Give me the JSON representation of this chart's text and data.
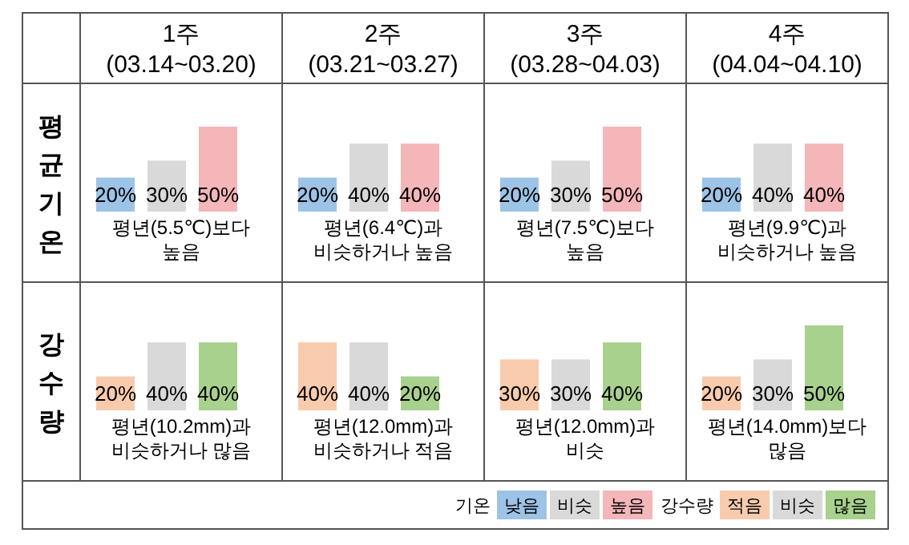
{
  "chart_data": [
    {
      "type": "bar",
      "title": "1주",
      "subtitle": "(03.14~03.20)",
      "ylabel": "평균기온",
      "categories": [
        null,
        null,
        null
      ],
      "values": [
        20,
        30,
        50
      ],
      "value_labels": [
        "20%",
        "30%",
        "50%"
      ],
      "colors": [
        "#9dc3e6",
        "#d9d9d9",
        "#f4b6b9"
      ],
      "annotations": [
        "평년(5.5℃)보다\n높음"
      ]
    },
    {
      "type": "bar",
      "title": "2주",
      "subtitle": "(03.21~03.27)",
      "categories": [
        null,
        null,
        null
      ],
      "values": [
        20,
        40,
        40
      ],
      "value_labels": [
        "20%",
        "40%",
        "40%"
      ],
      "colors": [
        "#9dc3e6",
        "#d9d9d9",
        "#f4b6b9"
      ],
      "annotations": [
        "평년(6.4℃)과\n비슷하거나 높음"
      ]
    },
    {
      "type": "bar",
      "title": "3주",
      "subtitle": "(03.28~04.03)",
      "categories": [
        null,
        null,
        null
      ],
      "values": [
        20,
        30,
        50
      ],
      "value_labels": [
        "20%",
        "30%",
        "50%"
      ],
      "colors": [
        "#9dc3e6",
        "#d9d9d9",
        "#f4b6b9"
      ],
      "annotations": [
        "평년(7.5℃)보다\n높음"
      ]
    },
    {
      "type": "bar",
      "title": "4주",
      "subtitle": "(04.04~04.10)",
      "categories": [
        null,
        null,
        null
      ],
      "values": [
        20,
        40,
        40
      ],
      "value_labels": [
        "20%",
        "40%",
        "40%"
      ],
      "colors": [
        "#9dc3e6",
        "#d9d9d9",
        "#f4b6b9"
      ],
      "annotations": [
        "평년(9.9℃)과\n비슷하거나 높음"
      ]
    },
    {
      "type": "bar",
      "ylabel": "강수량",
      "categories": [
        null,
        null,
        null
      ],
      "values": [
        20,
        40,
        40
      ],
      "value_labels": [
        "20%",
        "40%",
        "40%"
      ],
      "colors": [
        "#f8cbad",
        "#d9d9d9",
        "#a9d18e"
      ],
      "annotations": [
        "평년(10.2mm)과\n비슷하거나 많음"
      ]
    },
    {
      "type": "bar",
      "categories": [
        null,
        null,
        null
      ],
      "values": [
        40,
        40,
        20
      ],
      "value_labels": [
        "40%",
        "40%",
        "20%"
      ],
      "colors": [
        "#f8cbad",
        "#d9d9d9",
        "#a9d18e"
      ],
      "annotations": [
        "평년(12.0mm)과\n비슷하거나 적음"
      ]
    },
    {
      "type": "bar",
      "categories": [
        null,
        null,
        null
      ],
      "values": [
        30,
        30,
        40
      ],
      "value_labels": [
        "30%",
        "30%",
        "40%"
      ],
      "colors": [
        "#f8cbad",
        "#d9d9d9",
        "#a9d18e"
      ],
      "annotations": [
        "평년(12.0mm)과\n비슷"
      ]
    },
    {
      "type": "bar",
      "categories": [
        null,
        null,
        null
      ],
      "values": [
        20,
        30,
        50
      ],
      "value_labels": [
        "20%",
        "30%",
        "50%"
      ],
      "colors": [
        "#f8cbad",
        "#d9d9d9",
        "#a9d18e"
      ],
      "annotations": [
        "평년(14.0mm)보다\n많음"
      ]
    },
    {
      "type": "other",
      "annotations": [
        "기온",
        "강수량"
      ],
      "categories": [
        "낮음",
        "비슷",
        "높음",
        "적음",
        "비슷",
        "많음"
      ],
      "colors": [
        "#9dc3e6",
        "#d9d9d9",
        "#f4b6b9",
        "#f8cbad",
        "#d9d9d9",
        "#a9d18e"
      ]
    }
  ]
}
